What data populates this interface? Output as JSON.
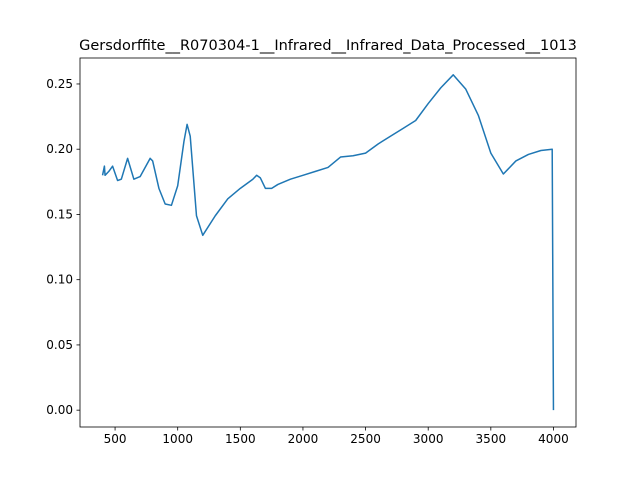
{
  "chart_data": {
    "type": "line",
    "title": "Gersdorffite__R070304-1__Infrared__Infrared_Data_Processed__1013",
    "series": [
      {
        "color": "#1f77b4",
        "x": [
          400,
          415,
          420,
          450,
          480,
          520,
          550,
          600,
          650,
          700,
          780,
          800,
          850,
          900,
          950,
          1000,
          1050,
          1075,
          1100,
          1150,
          1200,
          1300,
          1400,
          1500,
          1600,
          1630,
          1660,
          1700,
          1750,
          1800,
          1900,
          2000,
          2100,
          2200,
          2300,
          2400,
          2500,
          2600,
          2700,
          2800,
          2900,
          3000,
          3100,
          3200,
          3300,
          3400,
          3500,
          3600,
          3700,
          3800,
          3900,
          3990,
          4000
        ],
        "values": [
          0.18,
          0.187,
          0.18,
          0.183,
          0.187,
          0.176,
          0.177,
          0.193,
          0.177,
          0.179,
          0.193,
          0.191,
          0.17,
          0.158,
          0.157,
          0.172,
          0.206,
          0.219,
          0.21,
          0.149,
          0.134,
          0.149,
          0.162,
          0.17,
          0.177,
          0.18,
          0.178,
          0.17,
          0.17,
          0.173,
          0.177,
          0.18,
          0.183,
          0.186,
          0.194,
          0.195,
          0.197,
          0.204,
          0.21,
          0.216,
          0.222,
          0.235,
          0.247,
          0.257,
          0.246,
          0.226,
          0.197,
          0.181,
          0.191,
          0.196,
          0.199,
          0.2,
          0.0
        ]
      }
    ],
    "xlim": [
      220,
      4180
    ],
    "xticks": [
      500,
      1000,
      1500,
      2000,
      2500,
      3000,
      3500,
      4000
    ],
    "ylim": [
      -0.0129,
      0.2699
    ],
    "yticks": [
      {
        "value": 0,
        "label": "0.00"
      },
      {
        "value": 0.05,
        "label": "0.05"
      },
      {
        "value": 0.1,
        "label": "0.10"
      },
      {
        "value": 0.15,
        "label": "0.15"
      },
      {
        "value": 0.2,
        "label": "0.20"
      },
      {
        "value": 0.25,
        "label": "0.25"
      }
    ],
    "grid": false
  }
}
